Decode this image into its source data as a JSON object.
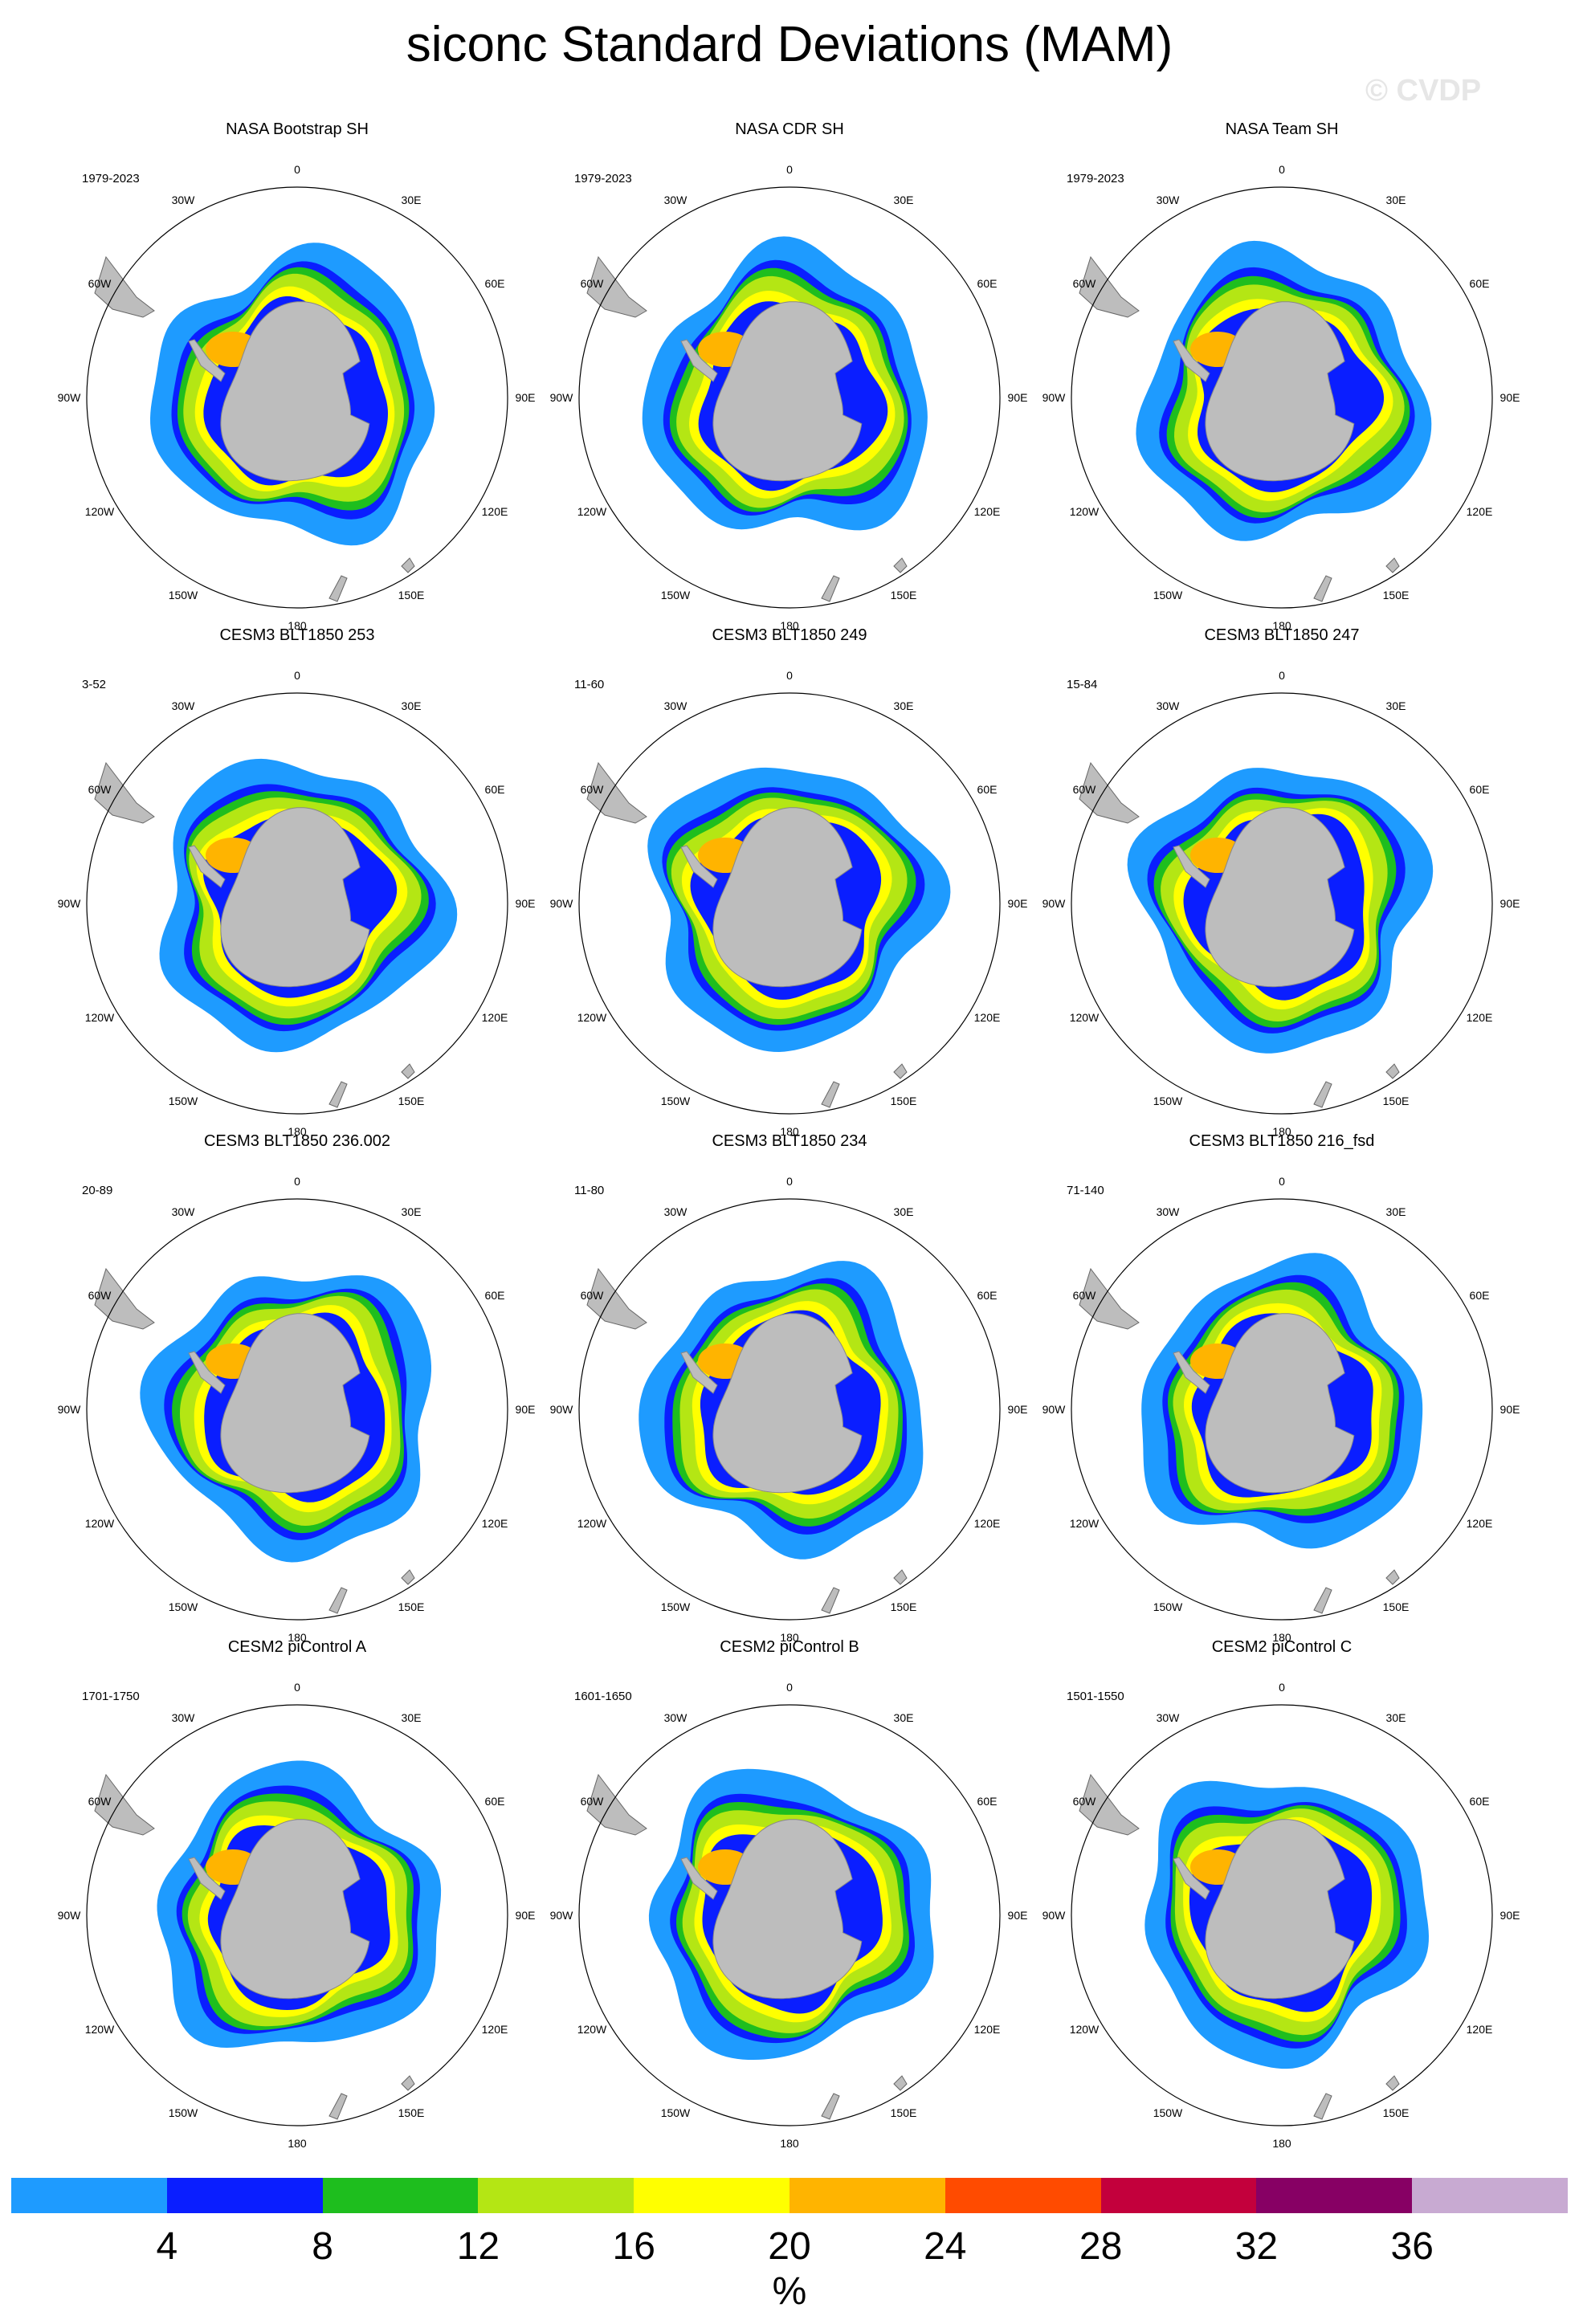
{
  "title": "siconc Standard Deviations (MAM)",
  "watermark": "© CVDP",
  "units": "%",
  "lon_labels": {
    "0": "0",
    "30E": "30E",
    "60E": "60E",
    "90E": "90E",
    "120E": "120E",
    "150E": "150E",
    "180": "180",
    "150W": "150W",
    "120W": "120W",
    "90W": "90W",
    "60W": "60W",
    "30W": "30W"
  },
  "panels": [
    {
      "title": "NASA Bootstrap SH",
      "period": "1979-2023"
    },
    {
      "title": "NASA CDR SH",
      "period": "1979-2023"
    },
    {
      "title": "NASA Team SH",
      "period": "1979-2023"
    },
    {
      "title": "CESM3 BLT1850 253",
      "period": "3-52"
    },
    {
      "title": "CESM3 BLT1850 249",
      "period": "11-60"
    },
    {
      "title": "CESM3 BLT1850 247",
      "period": "15-84"
    },
    {
      "title": "CESM3 BLT1850 236.002",
      "period": "20-89"
    },
    {
      "title": "CESM3 BLT1850 234",
      "period": "11-80"
    },
    {
      "title": "CESM3 BLT1850 216_fsd",
      "period": "71-140"
    },
    {
      "title": "CESM2 piControl A",
      "period": "1701-1750"
    },
    {
      "title": "CESM2 piControl B",
      "period": "1601-1650"
    },
    {
      "title": "CESM2 piControl C",
      "period": "1501-1550"
    }
  ],
  "colorbar": {
    "colors": [
      "#1e9bff",
      "#0a1eff",
      "#1ebe1e",
      "#b4e614",
      "#ffff00",
      "#ffb400",
      "#ff4b00",
      "#c3003c",
      "#870064",
      "#c8aad2"
    ],
    "labels": [
      "4",
      "8",
      "12",
      "16",
      "20",
      "24",
      "28",
      "32",
      "36"
    ]
  },
  "colors": {
    "land": "#bdbdbd",
    "ocean_bg": "#ffffff"
  }
}
